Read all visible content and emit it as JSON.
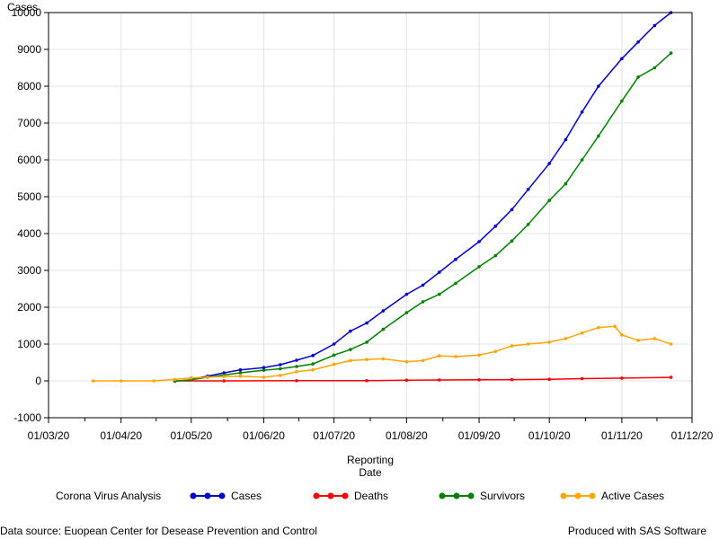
{
  "chart_data": {
    "type": "line",
    "ylabel": "Cases",
    "xlabel_line1": "Reporting",
    "xlabel_line2": "Date",
    "ylim": [
      -1000,
      10000
    ],
    "yticks": [
      -1000,
      0,
      1000,
      2000,
      3000,
      4000,
      5000,
      6000,
      7000,
      8000,
      9000,
      10000
    ],
    "xlim": [
      "2020-03-01",
      "2020-12-01"
    ],
    "xticks": [
      {
        "date": "2020-03-01",
        "label": "01/03/20"
      },
      {
        "date": "2020-04-01",
        "label": "01/04/20"
      },
      {
        "date": "2020-05-01",
        "label": "01/05/20"
      },
      {
        "date": "2020-06-01",
        "label": "01/06/20"
      },
      {
        "date": "2020-07-01",
        "label": "01/07/20"
      },
      {
        "date": "2020-08-01",
        "label": "01/08/20"
      },
      {
        "date": "2020-09-01",
        "label": "01/09/20"
      },
      {
        "date": "2020-10-01",
        "label": "01/10/20"
      },
      {
        "date": "2020-11-01",
        "label": "01/11/20"
      },
      {
        "date": "2020-12-01",
        "label": "01/12/20"
      }
    ],
    "grid": true,
    "legend": {
      "title": "Corona Virus Analysis",
      "placement": "bottom"
    },
    "series": [
      {
        "name": "Cases",
        "color": "#0000cc",
        "points": [
          [
            "2020-05-01",
            50
          ],
          [
            "2020-05-08",
            130
          ],
          [
            "2020-05-15",
            220
          ],
          [
            "2020-05-22",
            300
          ],
          [
            "2020-06-01",
            360
          ],
          [
            "2020-06-08",
            440
          ],
          [
            "2020-06-15",
            560
          ],
          [
            "2020-06-22",
            690
          ],
          [
            "2020-07-01",
            1000
          ],
          [
            "2020-07-08",
            1350
          ],
          [
            "2020-07-15",
            1570
          ],
          [
            "2020-07-22",
            1900
          ],
          [
            "2020-08-01",
            2350
          ],
          [
            "2020-08-08",
            2600
          ],
          [
            "2020-08-15",
            2950
          ],
          [
            "2020-08-22",
            3300
          ],
          [
            "2020-09-01",
            3780
          ],
          [
            "2020-09-08",
            4200
          ],
          [
            "2020-09-15",
            4650
          ],
          [
            "2020-09-22",
            5200
          ],
          [
            "2020-10-01",
            5900
          ],
          [
            "2020-10-08",
            6550
          ],
          [
            "2020-10-15",
            7300
          ],
          [
            "2020-10-22",
            8000
          ],
          [
            "2020-11-01",
            8750
          ],
          [
            "2020-11-08",
            9200
          ],
          [
            "2020-11-15",
            9650
          ],
          [
            "2020-11-22",
            10000
          ]
        ]
      },
      {
        "name": "Deaths",
        "color": "#ff0000",
        "points": [
          [
            "2020-04-24",
            0
          ],
          [
            "2020-05-15",
            0
          ],
          [
            "2020-06-15",
            5
          ],
          [
            "2020-07-15",
            5
          ],
          [
            "2020-08-01",
            20
          ],
          [
            "2020-08-15",
            25
          ],
          [
            "2020-09-01",
            30
          ],
          [
            "2020-09-15",
            35
          ],
          [
            "2020-10-01",
            45
          ],
          [
            "2020-10-15",
            60
          ],
          [
            "2020-11-01",
            75
          ],
          [
            "2020-11-22",
            95
          ]
        ]
      },
      {
        "name": "Survivors",
        "color": "#008000",
        "points": [
          [
            "2020-04-24",
            -10
          ],
          [
            "2020-05-01",
            30
          ],
          [
            "2020-05-08",
            100
          ],
          [
            "2020-05-15",
            160
          ],
          [
            "2020-05-22",
            220
          ],
          [
            "2020-06-01",
            290
          ],
          [
            "2020-06-08",
            330
          ],
          [
            "2020-06-15",
            390
          ],
          [
            "2020-06-22",
            460
          ],
          [
            "2020-07-01",
            700
          ],
          [
            "2020-07-08",
            850
          ],
          [
            "2020-07-15",
            1050
          ],
          [
            "2020-07-22",
            1400
          ],
          [
            "2020-08-01",
            1850
          ],
          [
            "2020-08-08",
            2150
          ],
          [
            "2020-08-15",
            2350
          ],
          [
            "2020-08-22",
            2650
          ],
          [
            "2020-09-01",
            3100
          ],
          [
            "2020-09-08",
            3400
          ],
          [
            "2020-09-15",
            3800
          ],
          [
            "2020-09-22",
            4250
          ],
          [
            "2020-10-01",
            4900
          ],
          [
            "2020-10-08",
            5350
          ],
          [
            "2020-10-15",
            6000
          ],
          [
            "2020-10-22",
            6650
          ],
          [
            "2020-11-01",
            7600
          ],
          [
            "2020-11-08",
            8250
          ],
          [
            "2020-11-15",
            8500
          ],
          [
            "2020-11-22",
            8900
          ]
        ]
      },
      {
        "name": "Active Cases",
        "color": "#ffa500",
        "points": [
          [
            "2020-03-20",
            0
          ],
          [
            "2020-04-01",
            0
          ],
          [
            "2020-04-15",
            0
          ],
          [
            "2020-04-24",
            40
          ],
          [
            "2020-05-01",
            80
          ],
          [
            "2020-05-08",
            100
          ],
          [
            "2020-05-15",
            120
          ],
          [
            "2020-05-22",
            130
          ],
          [
            "2020-06-01",
            100
          ],
          [
            "2020-06-08",
            150
          ],
          [
            "2020-06-15",
            250
          ],
          [
            "2020-06-22",
            300
          ],
          [
            "2020-07-01",
            450
          ],
          [
            "2020-07-08",
            550
          ],
          [
            "2020-07-15",
            580
          ],
          [
            "2020-07-22",
            600
          ],
          [
            "2020-08-01",
            520
          ],
          [
            "2020-08-08",
            550
          ],
          [
            "2020-08-15",
            680
          ],
          [
            "2020-08-22",
            660
          ],
          [
            "2020-09-01",
            700
          ],
          [
            "2020-09-08",
            800
          ],
          [
            "2020-09-15",
            950
          ],
          [
            "2020-09-22",
            1000
          ],
          [
            "2020-10-01",
            1050
          ],
          [
            "2020-10-08",
            1150
          ],
          [
            "2020-10-15",
            1300
          ],
          [
            "2020-10-22",
            1450
          ],
          [
            "2020-10-29",
            1480
          ],
          [
            "2020-11-01",
            1250
          ],
          [
            "2020-11-08",
            1100
          ],
          [
            "2020-11-15",
            1150
          ],
          [
            "2020-11-22",
            1000
          ]
        ]
      }
    ]
  },
  "footer": {
    "left": "Data source: Euopean Center for Desease Prevention and Control",
    "right": "Produced with SAS Software"
  }
}
